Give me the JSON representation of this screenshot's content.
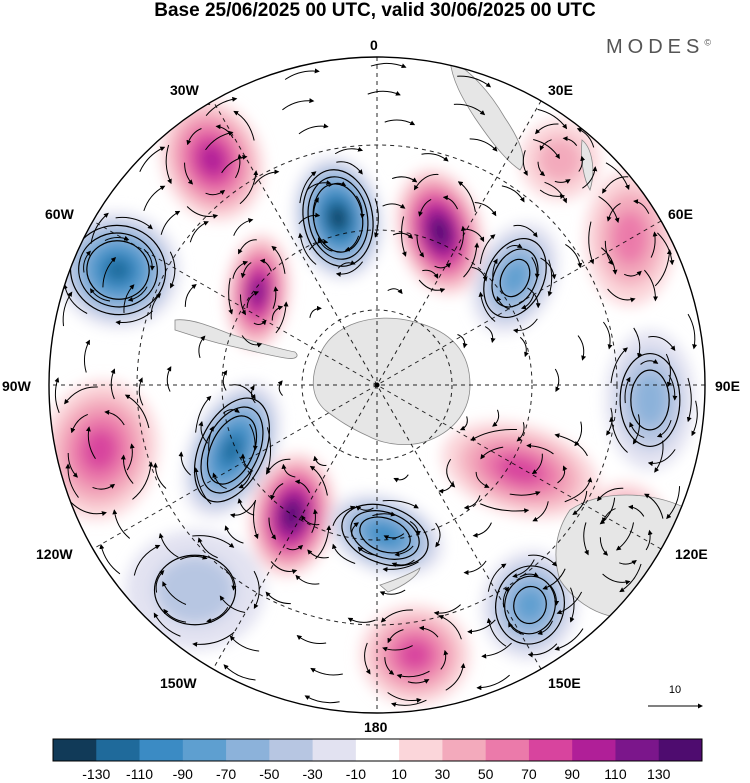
{
  "title": "Base 25/06/2025 00 UTC, valid 30/06/2025 00 UTC",
  "brand": "MODES",
  "brand_mark": "©",
  "longitude_labels": {
    "lon_0": "0",
    "lon_30e": "30E",
    "lon_60e": "60E",
    "lon_90e": "90E",
    "lon_120e": "120E",
    "lon_150e": "150E",
    "lon_180": "180",
    "lon_150w": "150W",
    "lon_120w": "120W",
    "lon_90w": "90W",
    "lon_60w": "60W",
    "lon_30w": "30W"
  },
  "reference_vector_label": "10",
  "colorbar": {
    "ticks": [
      "-130",
      "-110",
      "-90",
      "-70",
      "-50",
      "-30",
      "-10",
      "10",
      "30",
      "50",
      "70",
      "90",
      "110",
      "130"
    ],
    "colors": [
      "#113a58",
      "#1f6a9b",
      "#3b8bc4",
      "#5e9fd0",
      "#8cb2da",
      "#b7c6e2",
      "#e2e2f1",
      "#ffffff",
      "#fbd6da",
      "#f3aabc",
      "#eb7aaa",
      "#d8449e",
      "#b01f98",
      "#7b168b",
      "#4e0c6f"
    ]
  },
  "colors": {
    "land": "#e6e6e6",
    "background": "#ffffff"
  }
}
